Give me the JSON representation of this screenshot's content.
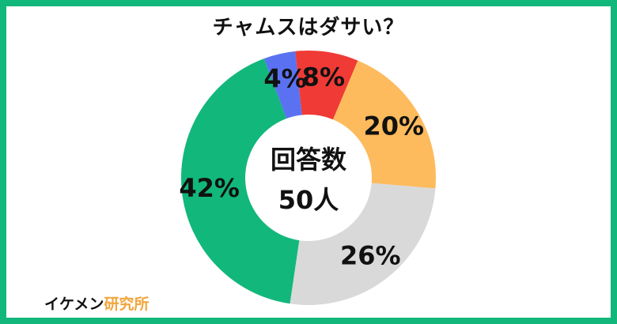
{
  "title": "チャムスはダサい？",
  "center": {
    "line1": "回答数",
    "line2": "50人"
  },
  "brand": {
    "main": "イケメン",
    "accent": "研究所"
  },
  "colors": {
    "frame": "#12b77b",
    "brand_accent": "#f2a53c"
  },
  "chart_data": {
    "type": "pie",
    "variant": "donut",
    "title": "チャムスはダサい？",
    "total_label": "回答数 50人",
    "slices": [
      {
        "value": 8,
        "label": "8%",
        "color": "#f03a35"
      },
      {
        "value": 20,
        "label": "20%",
        "color": "#fdbb5d"
      },
      {
        "value": 26,
        "label": "26%",
        "color": "#d9d9d9"
      },
      {
        "value": 42,
        "label": "42%",
        "color": "#12b77b"
      },
      {
        "value": 4,
        "label": "4%",
        "color": "#5a72f2"
      }
    ]
  }
}
